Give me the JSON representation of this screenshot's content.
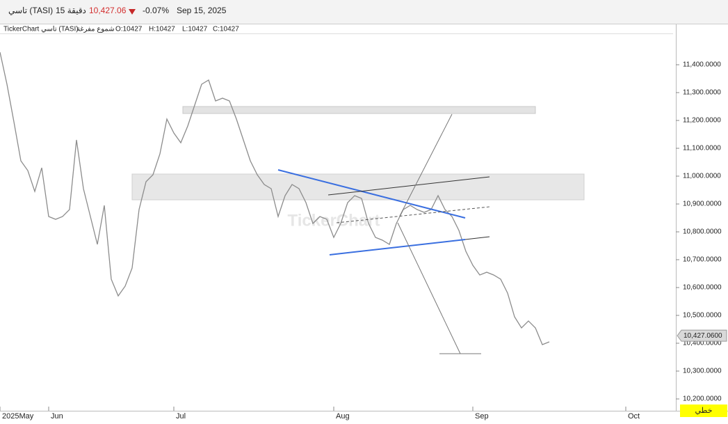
{
  "header": {
    "symbol": "تاسي (TASI)",
    "interval": "15 دقيقة",
    "price": "10,427.06",
    "change": "-0.07%",
    "date": "Sep 15, 2025"
  },
  "legend": {
    "source": "TickerChart تاسي (TASI)",
    "style": "شموع مفرغة",
    "open": "O:10427",
    "high": "H:10427",
    "low": "L:10427",
    "close": "C:10427"
  },
  "watermark": "TickerChart",
  "chart_type_button": "خطي",
  "chart_data": {
    "type": "line",
    "color": "#8c8c8c",
    "categories": [
      "2025May",
      null,
      null,
      null,
      null,
      null,
      null,
      "Jun",
      null,
      null,
      null,
      null,
      null,
      null,
      null,
      null,
      null,
      null,
      null,
      null,
      null,
      null,
      null,
      null,
      null,
      "Jul",
      null,
      null,
      null,
      null,
      null,
      null,
      null,
      null,
      null,
      null,
      null,
      null,
      null,
      null,
      null,
      null,
      null,
      null,
      null,
      null,
      null,
      null,
      "Aug",
      null,
      null,
      null,
      null,
      null,
      null,
      null,
      null,
      null,
      null,
      null,
      null,
      null,
      null,
      null,
      null,
      null,
      null,
      null,
      "Sep",
      null,
      null,
      null,
      null,
      null,
      null,
      null,
      null,
      null,
      null,
      null,
      null,
      null,
      null,
      null,
      null,
      null,
      null,
      null,
      null,
      null,
      "Oct",
      null,
      null,
      null,
      null,
      null,
      null
    ],
    "values": [
      11445,
      11330,
      11195,
      11055,
      11020,
      10945,
      11030,
      10855,
      10845,
      10855,
      10880,
      11130,
      10955,
      10855,
      10755,
      10895,
      10630,
      10570,
      10605,
      10670,
      10880,
      10980,
      11005,
      11080,
      11205,
      11155,
      11120,
      11180,
      11255,
      11330,
      11345,
      11270,
      11280,
      11270,
      11205,
      11130,
      11055,
      11005,
      10970,
      10955,
      10855,
      10930,
      10970,
      10955,
      10905,
      10830,
      10855,
      10845,
      10780,
      10830,
      10905,
      10930,
      10920,
      10830,
      10780,
      10770,
      10755,
      10830,
      10880,
      10895,
      10880,
      10870,
      10880,
      10930,
      10880,
      10855,
      10805,
      10730,
      10680,
      10645,
      10655,
      10645,
      10630,
      10580,
      10495,
      10455,
      10480,
      10455,
      10395,
      10405,
      null,
      null,
      null,
      null,
      null,
      null,
      null,
      null,
      null,
      null,
      null,
      null,
      null,
      null,
      null,
      null,
      null
    ],
    "ylim": [
      10157.5,
      11542.5
    ],
    "yticks": [
      {
        "value": 10200,
        "label": "10,200.0000"
      },
      {
        "value": 10300,
        "label": "10,300.0000"
      },
      {
        "value": 10400,
        "label": "10,400.0000"
      },
      {
        "value": 10500,
        "label": "10,500.0000"
      },
      {
        "value": 10600,
        "label": "10,600.0000"
      },
      {
        "value": 10700,
        "label": "10,700.0000"
      },
      {
        "value": 10800,
        "label": "10,800.0000"
      },
      {
        "value": 10900,
        "label": "10,900.0000"
      },
      {
        "value": 11000,
        "label": "11,000.0000"
      },
      {
        "value": 11100,
        "label": "11,100.0000"
      },
      {
        "value": 11200,
        "label": "11,200.0000"
      },
      {
        "value": 11300,
        "label": "11,300.0000"
      },
      {
        "value": 11400,
        "label": "11,400.0000"
      }
    ],
    "last_price": {
      "value": 10427.06,
      "label": "10,427.0600"
    },
    "grid": false
  }
}
